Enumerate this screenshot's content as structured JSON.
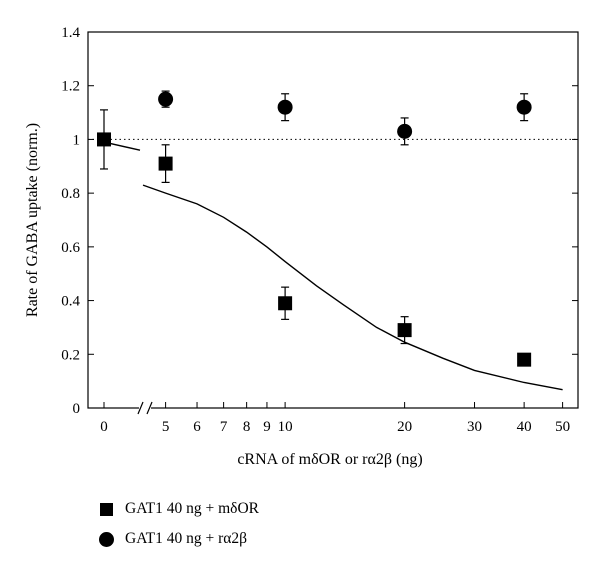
{
  "chart_data": {
    "type": "scatter",
    "ylabel": "Rate of GABA uptake (norm.)",
    "xlabel": "cRNA of mδOR or rα2β (ng)",
    "x_scale": "log, with axis break between 0 and 5",
    "ylim": [
      0,
      1.4
    ],
    "y_ticks": [
      "0",
      "0.2",
      "0.4",
      "0.6",
      "0.8",
      "1",
      "1.2",
      "1.4"
    ],
    "x_ticks": [
      "0",
      "5",
      "6",
      "7",
      "8",
      "9",
      "10",
      "20",
      "30",
      "40",
      "50"
    ],
    "reference_line": {
      "y": 1,
      "style": "dotted"
    },
    "series": [
      {
        "name": "GAT1 40 ng + mδOR",
        "marker": "square",
        "points": [
          {
            "x": 0,
            "y": 1.0,
            "err": 0.11
          },
          {
            "x": 5,
            "y": 0.91,
            "err": 0.07
          },
          {
            "x": 10,
            "y": 0.39,
            "err": 0.06
          },
          {
            "x": 20,
            "y": 0.29,
            "err": 0.05
          },
          {
            "x": 40,
            "y": 0.18,
            "err": 0.02
          }
        ],
        "fit": [
          {
            "x": 0,
            "y": 0.99
          },
          {
            "x": 3,
            "y": 0.96
          },
          {
            "x": 4,
            "y": 0.83
          },
          {
            "x": 5,
            "y": 0.8
          },
          {
            "x": 6,
            "y": 0.76
          },
          {
            "x": 7,
            "y": 0.71
          },
          {
            "x": 8,
            "y": 0.655
          },
          {
            "x": 9,
            "y": 0.6
          },
          {
            "x": 10,
            "y": 0.545
          },
          {
            "x": 12,
            "y": 0.455
          },
          {
            "x": 14,
            "y": 0.385
          },
          {
            "x": 17,
            "y": 0.3
          },
          {
            "x": 20,
            "y": 0.245
          },
          {
            "x": 25,
            "y": 0.185
          },
          {
            "x": 30,
            "y": 0.14
          },
          {
            "x": 40,
            "y": 0.095
          },
          {
            "x": 50,
            "y": 0.068
          }
        ]
      },
      {
        "name": "GAT1 40 ng + rα2β",
        "marker": "circle",
        "points": [
          {
            "x": 5,
            "y": 1.15,
            "err": 0.03
          },
          {
            "x": 10,
            "y": 1.12,
            "err": 0.05
          },
          {
            "x": 20,
            "y": 1.03,
            "err": 0.05
          },
          {
            "x": 40,
            "y": 1.12,
            "err": 0.05
          }
        ]
      }
    ],
    "legend_position": "bottom-left, below plot"
  }
}
